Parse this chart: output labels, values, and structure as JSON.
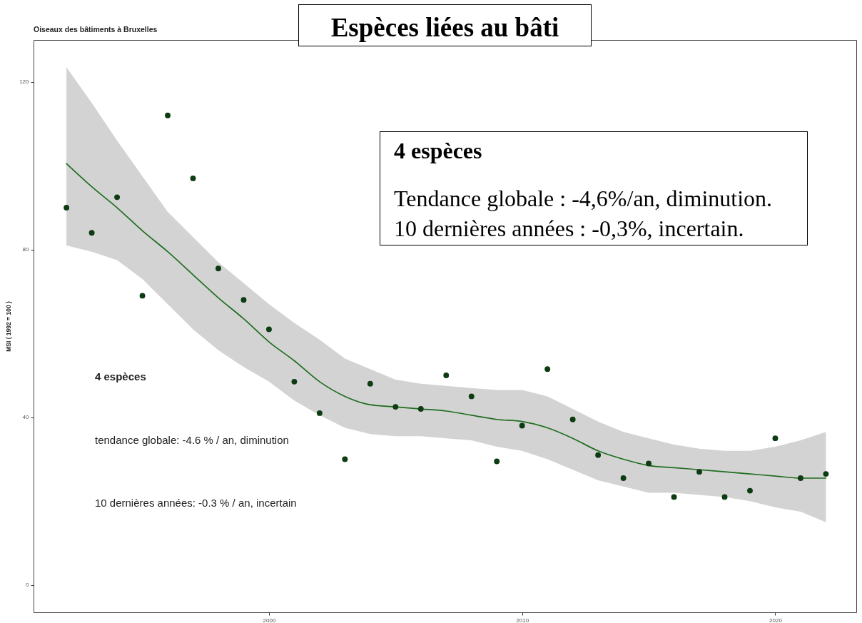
{
  "chart_data": {
    "type": "scatter",
    "title": "Espèces liées au bâti",
    "subtitle": "Oiseaux des bâtiments à Bruxelles",
    "ylabel": "MSI ( 1992 = 100 )",
    "annotations": [
      "4 espèces",
      "tendance globale: -4.6 % / an, diminution",
      "10 dernières années: -0.3 % / an, incertain",
      "4 espèces",
      "Tendance globale : -4,6%/an, diminution.",
      "10 dernières années : -0,3%, incertain."
    ],
    "x": [
      1992,
      1993,
      1994,
      1995,
      1996,
      1997,
      1998,
      1999,
      2000,
      2001,
      2002,
      2003,
      2004,
      2005,
      2006,
      2007,
      2008,
      2009,
      2010,
      2011,
      2012,
      2013,
      2014,
      2015,
      2016,
      2017,
      2018,
      2019,
      2020,
      2021,
      2022
    ],
    "series": [
      {
        "type": "scatter",
        "color": "#0d3b12",
        "marker": "circle",
        "values": [
          90,
          84,
          92.5,
          69,
          112,
          97,
          75.5,
          68,
          61,
          48.5,
          41,
          30,
          48,
          42.5,
          42,
          50,
          45,
          29.5,
          38,
          51.5,
          39.5,
          31,
          25.5,
          29,
          21,
          27,
          21,
          22.5,
          35,
          25.5,
          26.5
        ]
      },
      {
        "type": "line",
        "color": "#1f6e1f",
        "line_style": "solid",
        "marker": "none",
        "values": [
          100.5,
          95,
          90,
          84.5,
          79.5,
          74,
          68.5,
          63.5,
          58,
          53.5,
          48.5,
          45,
          43,
          42.5,
          42,
          41.5,
          40.5,
          39.5,
          39,
          37.5,
          35,
          32,
          30,
          28.5,
          28,
          27.5,
          27,
          26.5,
          26,
          25.5,
          25.5
        ],
        "lower": [
          81,
          79.5,
          77.5,
          73,
          67,
          61,
          56,
          52,
          48.5,
          44,
          40.5,
          37.5,
          36,
          35.5,
          35.5,
          35,
          34.5,
          33,
          32,
          30,
          27.5,
          25,
          23.5,
          22,
          22,
          21.5,
          21,
          20,
          18.5,
          17.5,
          15
        ],
        "upper": [
          123.5,
          115,
          106,
          97.5,
          89,
          83,
          77,
          72,
          67,
          62.5,
          58.5,
          54,
          51.5,
          49,
          48,
          47.5,
          47,
          46.5,
          46.5,
          45,
          42,
          39,
          36.5,
          35,
          33.5,
          32.5,
          32,
          32,
          33,
          34.5,
          36.5
        ]
      }
    ],
    "xlim": [
      1990.7,
      2023.2
    ],
    "xticks": [
      2000,
      2010,
      2020
    ],
    "ylim": [
      -6.5,
      130
    ],
    "yticks": [
      0,
      40,
      80,
      120
    ]
  }
}
